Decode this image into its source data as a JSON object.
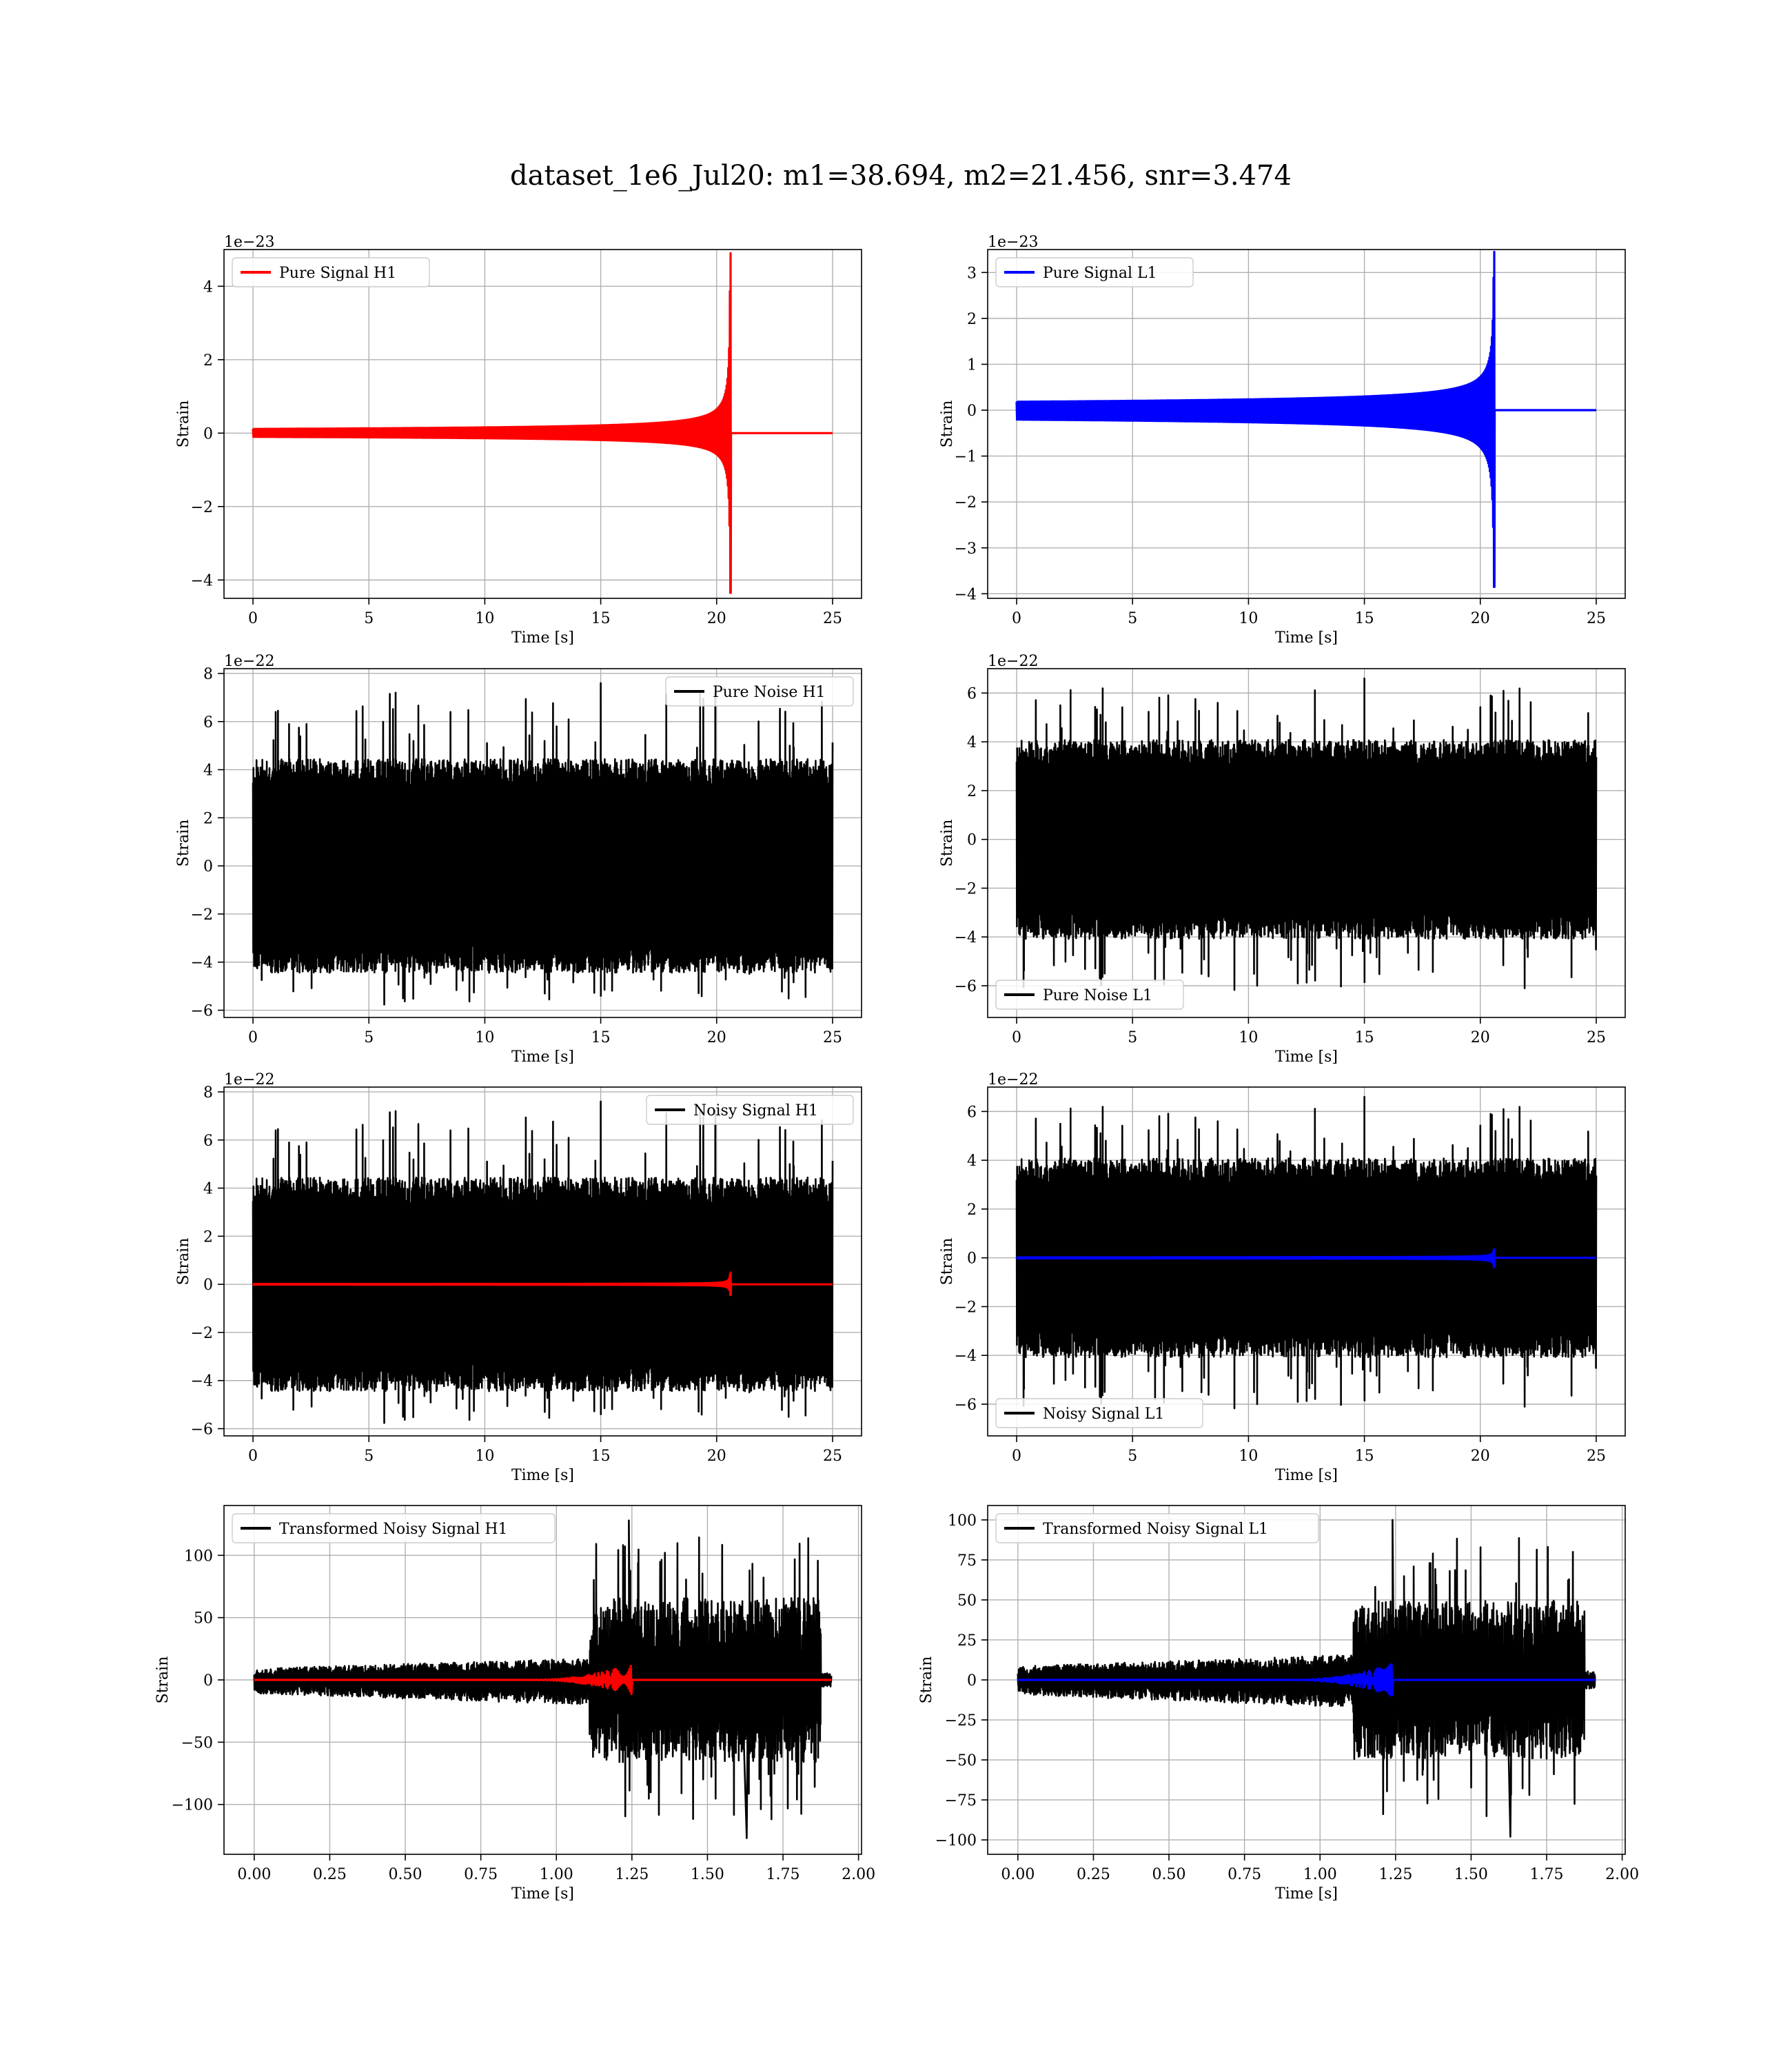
{
  "figure": {
    "title": "dataset_1e6_Jul20: m1=38.694, m2=21.456, snr=3.474"
  },
  "chart_data": [
    {
      "type": "line",
      "legend": "Pure Signal H1",
      "legend_loc": "upper-left",
      "color": "#ff0000",
      "xlabel": "Time [s]",
      "ylabel": "Strain",
      "offset_text": "1e−23",
      "xlim": [
        -1.25,
        26.25
      ],
      "ylim": [
        -4.5,
        5.0
      ],
      "xticks": [
        0,
        5,
        10,
        15,
        20,
        25
      ],
      "xtick_labels": [
        "0",
        "5",
        "10",
        "15",
        "20",
        "25"
      ],
      "yticks": [
        -4,
        -2,
        0,
        2,
        4
      ],
      "ytick_labels": [
        "−4",
        "−2",
        "0",
        "2",
        "4"
      ],
      "series": [
        {
          "kind": "chirp",
          "x_range": [
            0,
            25
          ],
          "merger": 20.6,
          "peak_pos": 4.9,
          "peak_neg": -4.35,
          "rise": 1.6,
          "color": "#ff0000"
        }
      ]
    },
    {
      "type": "line",
      "legend": "Pure Signal L1",
      "legend_loc": "upper-left",
      "color": "#0000ff",
      "xlabel": "Time [s]",
      "ylabel": "Strain",
      "offset_text": "1e−23",
      "xlim": [
        -1.25,
        26.25
      ],
      "ylim": [
        -4.1,
        3.5
      ],
      "xticks": [
        0,
        5,
        10,
        15,
        20,
        25
      ],
      "xtick_labels": [
        "0",
        "5",
        "10",
        "15",
        "20",
        "25"
      ],
      "yticks": [
        -4,
        -3,
        -2,
        -1,
        0,
        1,
        2,
        3
      ],
      "ytick_labels": [
        "−4",
        "−3",
        "−2",
        "−1",
        "0",
        "1",
        "2",
        "3"
      ],
      "series": [
        {
          "kind": "chirp",
          "x_range": [
            0,
            25
          ],
          "merger": 20.6,
          "peak_pos": 3.45,
          "peak_neg": -3.85,
          "rise": 1.2,
          "color": "#0000ff"
        }
      ]
    },
    {
      "type": "line",
      "legend": "Pure Noise H1",
      "legend_loc": "upper-right",
      "color": "#000000",
      "xlabel": "Time [s]",
      "ylabel": "Strain",
      "offset_text": "1e−22",
      "xlim": [
        -1.25,
        26.25
      ],
      "ylim": [
        -6.3,
        8.2
      ],
      "xticks": [
        0,
        5,
        10,
        15,
        20,
        25
      ],
      "xtick_labels": [
        "0",
        "5",
        "10",
        "15",
        "20",
        "25"
      ],
      "yticks": [
        -6,
        -4,
        -2,
        0,
        2,
        4,
        6,
        8
      ],
      "ytick_labels": [
        "−6",
        "−4",
        "−2",
        "0",
        "2",
        "4",
        "6",
        "8"
      ],
      "series": [
        {
          "kind": "noise",
          "x_range": [
            0,
            25
          ],
          "core_pos": 3.7,
          "core_neg": -3.7,
          "max": 7.6,
          "min": -6.0,
          "seed": 11,
          "color": "#000000"
        }
      ]
    },
    {
      "type": "line",
      "legend": "Pure Noise L1",
      "legend_loc": "lower-left",
      "color": "#000000",
      "xlabel": "Time [s]",
      "ylabel": "Strain",
      "offset_text": "1e−22",
      "xlim": [
        -1.25,
        26.25
      ],
      "ylim": [
        -7.3,
        7.0
      ],
      "xticks": [
        0,
        5,
        10,
        15,
        20,
        25
      ],
      "xtick_labels": [
        "0",
        "5",
        "10",
        "15",
        "20",
        "25"
      ],
      "yticks": [
        -6,
        -4,
        -2,
        0,
        2,
        4,
        6
      ],
      "ytick_labels": [
        "−6",
        "−4",
        "−2",
        "0",
        "2",
        "4",
        "6"
      ],
      "series": [
        {
          "kind": "noise",
          "x_range": [
            0,
            25
          ],
          "core_pos": 3.4,
          "core_neg": -3.4,
          "max": 6.6,
          "min": -6.5,
          "seed": 23,
          "color": "#000000"
        }
      ]
    },
    {
      "type": "line",
      "legend": "Noisy Signal H1",
      "legend_loc": "upper-right",
      "color": "#000000",
      "xlabel": "Time [s]",
      "ylabel": "Strain",
      "offset_text": "1e−22",
      "xlim": [
        -1.25,
        26.25
      ],
      "ylim": [
        -6.3,
        8.2
      ],
      "xticks": [
        0,
        5,
        10,
        15,
        20,
        25
      ],
      "xtick_labels": [
        "0",
        "5",
        "10",
        "15",
        "20",
        "25"
      ],
      "yticks": [
        -6,
        -4,
        -2,
        0,
        2,
        4,
        6,
        8
      ],
      "ytick_labels": [
        "−6",
        "−4",
        "−2",
        "0",
        "2",
        "4",
        "6",
        "8"
      ],
      "series": [
        {
          "kind": "noise",
          "x_range": [
            0,
            25
          ],
          "core_pos": 3.7,
          "core_neg": -3.7,
          "max": 7.6,
          "min": -6.0,
          "seed": 11,
          "color": "#000000"
        },
        {
          "kind": "chirp",
          "x_range": [
            0,
            25
          ],
          "merger": 20.6,
          "peak_pos": 0.49,
          "peak_neg": -0.44,
          "rise": 1.6,
          "color": "#ff0000"
        }
      ]
    },
    {
      "type": "line",
      "legend": "Noisy Signal L1",
      "legend_loc": "lower-left",
      "color": "#000000",
      "xlabel": "Time [s]",
      "ylabel": "Strain",
      "offset_text": "1e−22",
      "xlim": [
        -1.25,
        26.25
      ],
      "ylim": [
        -7.3,
        7.0
      ],
      "xticks": [
        0,
        5,
        10,
        15,
        20,
        25
      ],
      "xtick_labels": [
        "0",
        "5",
        "10",
        "15",
        "20",
        "25"
      ],
      "yticks": [
        -6,
        -4,
        -2,
        0,
        2,
        4,
        6
      ],
      "ytick_labels": [
        "−6",
        "−4",
        "−2",
        "0",
        "2",
        "4",
        "6"
      ],
      "series": [
        {
          "kind": "noise",
          "x_range": [
            0,
            25
          ],
          "core_pos": 3.4,
          "core_neg": -3.4,
          "max": 6.6,
          "min": -6.5,
          "seed": 23,
          "color": "#000000"
        },
        {
          "kind": "chirp",
          "x_range": [
            0,
            25
          ],
          "merger": 20.6,
          "peak_pos": 0.35,
          "peak_neg": -0.38,
          "rise": 1.2,
          "color": "#0000ff"
        }
      ]
    },
    {
      "type": "line",
      "legend": "Transformed Noisy Signal H1",
      "legend_loc": "upper-left",
      "color": "#000000",
      "xlabel": "Time [s]",
      "ylabel": "Strain",
      "offset_text": "",
      "xlim": [
        -0.1,
        2.01
      ],
      "ylim": [
        -140,
        140
      ],
      "xticks": [
        0,
        0.25,
        0.5,
        0.75,
        1.0,
        1.25,
        1.5,
        1.75,
        2.0
      ],
      "xtick_labels": [
        "0.00",
        "0.25",
        "0.50",
        "0.75",
        "1.00",
        "1.25",
        "1.50",
        "1.75",
        "2.00"
      ],
      "yticks": [
        -100,
        -50,
        0,
        50,
        100
      ],
      "ytick_labels": [
        "−100",
        "−50",
        "0",
        "50",
        "100"
      ],
      "series": [
        {
          "kind": "transformed",
          "x_range": [
            0,
            1.91
          ],
          "jump": 1.11,
          "cutoff": 1.875,
          "low_pos": 12,
          "low_neg": -14,
          "high_pos": 60,
          "high_neg": -60,
          "max": 128,
          "min": -127,
          "seed": 37,
          "color": "#000000"
        },
        {
          "kind": "tchirp",
          "x_range": [
            0,
            1.91
          ],
          "merger": 1.25,
          "peak_pos": 13,
          "peak_neg": -12,
          "color": "#ff0000"
        }
      ]
    },
    {
      "type": "line",
      "legend": "Transformed Noisy Signal L1",
      "legend_loc": "upper-left",
      "color": "#000000",
      "xlabel": "Time [s]",
      "ylabel": "Strain",
      "offset_text": "",
      "xlim": [
        -0.1,
        2.01
      ],
      "ylim": [
        -109,
        109
      ],
      "xticks": [
        0,
        0.25,
        0.5,
        0.75,
        1.0,
        1.25,
        1.5,
        1.75,
        2.0
      ],
      "xtick_labels": [
        "0.00",
        "0.25",
        "0.50",
        "0.75",
        "1.00",
        "1.25",
        "1.50",
        "1.75",
        "2.00"
      ],
      "yticks": [
        -100,
        -75,
        -50,
        -25,
        0,
        25,
        50,
        75,
        100
      ],
      "ytick_labels": [
        "−100",
        "−75",
        "−50",
        "−25",
        "0",
        "25",
        "50",
        "75",
        "100"
      ],
      "series": [
        {
          "kind": "transformed",
          "x_range": [
            0,
            1.91
          ],
          "jump": 1.11,
          "cutoff": 1.875,
          "low_pos": 11,
          "low_neg": -12,
          "high_pos": 45,
          "high_neg": -45,
          "max": 100,
          "min": -98,
          "seed": 53,
          "color": "#000000"
        },
        {
          "kind": "tchirp",
          "x_range": [
            0,
            1.91
          ],
          "merger": 1.24,
          "peak_pos": 10,
          "peak_neg": -10,
          "color": "#0000ff"
        }
      ]
    }
  ]
}
